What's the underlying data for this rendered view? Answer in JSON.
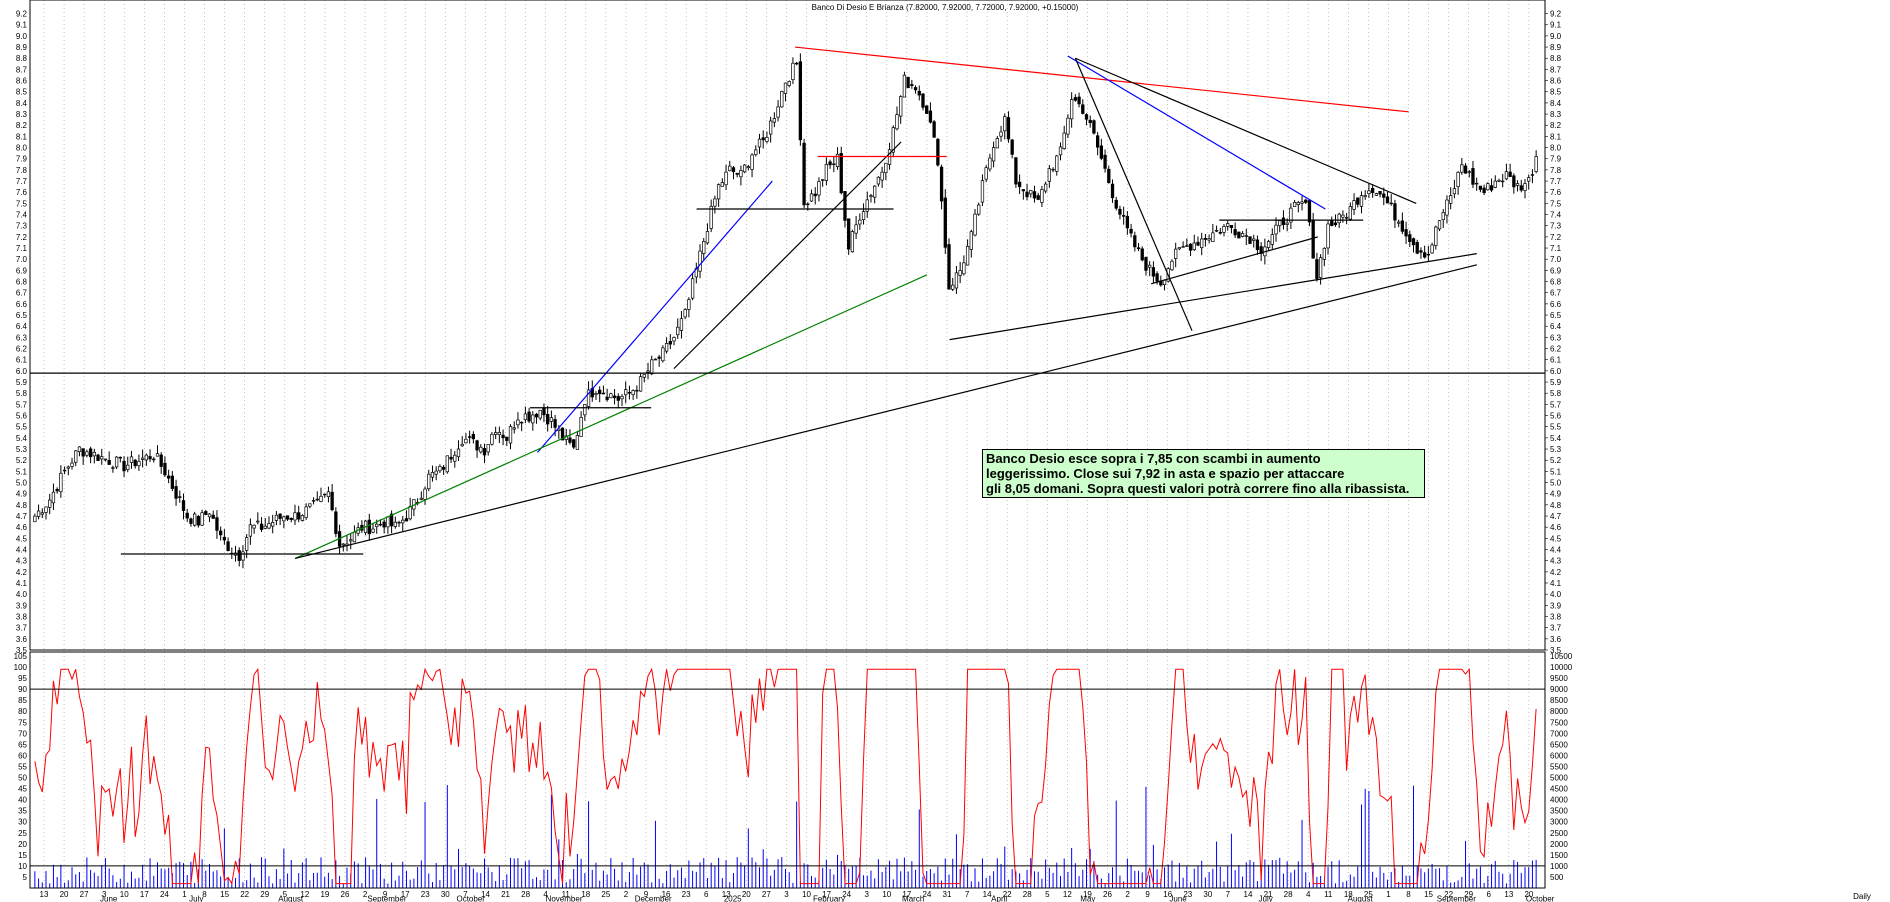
{
  "chart_data": [
    {
      "type": "candlestick",
      "title": "Banco Di Desio E Brianza (7.82000, 7.92000, 7.72000, 7.92000, +0.15000)",
      "ylim": [
        3.5,
        9.25
      ],
      "yticks": [
        3.5,
        3.6,
        3.7,
        3.8,
        3.9,
        4.0,
        4.1,
        4.2,
        4.3,
        4.4,
        4.5,
        4.6,
        4.7,
        4.8,
        4.9,
        5.0,
        5.1,
        5.2,
        5.3,
        5.4,
        5.5,
        5.6,
        5.7,
        5.8,
        5.9,
        6.0,
        6.1,
        6.2,
        6.3,
        6.4,
        6.5,
        6.6,
        6.7,
        6.8,
        6.9,
        7.0,
        7.1,
        7.2,
        7.3,
        7.4,
        7.5,
        7.6,
        7.7,
        7.8,
        7.9,
        8.0,
        8.1,
        8.2,
        8.3,
        8.4,
        8.5,
        8.6,
        8.7,
        8.8,
        8.9,
        9.0,
        9.1,
        9.2
      ],
      "grid": true,
      "close_path": [
        [
          0,
          4.7
        ],
        [
          4,
          4.85
        ],
        [
          8,
          5.1
        ],
        [
          12,
          5.3
        ],
        [
          16,
          5.25
        ],
        [
          20,
          5.2
        ],
        [
          24,
          5.15
        ],
        [
          28,
          5.2
        ],
        [
          32,
          5.25
        ],
        [
          35,
          5.1
        ],
        [
          38,
          4.9
        ],
        [
          41,
          4.7
        ],
        [
          44,
          4.65
        ],
        [
          47,
          4.75
        ],
        [
          50,
          4.5
        ],
        [
          53,
          4.4
        ],
        [
          55,
          4.35
        ],
        [
          58,
          4.6
        ],
        [
          61,
          4.6
        ],
        [
          64,
          4.65
        ],
        [
          67,
          4.7
        ],
        [
          70,
          4.7
        ],
        [
          73,
          4.75
        ],
        [
          76,
          4.8
        ],
        [
          79,
          4.9
        ],
        [
          82,
          4.45
        ],
        [
          85,
          4.5
        ],
        [
          88,
          4.6
        ],
        [
          91,
          4.6
        ],
        [
          94,
          4.65
        ],
        [
          97,
          4.6
        ],
        [
          100,
          4.7
        ],
        [
          103,
          4.85
        ],
        [
          106,
          5.05
        ],
        [
          109,
          5.1
        ],
        [
          112,
          5.25
        ],
        [
          115,
          5.4
        ],
        [
          118,
          5.35
        ],
        [
          121,
          5.3
        ],
        [
          124,
          5.5
        ],
        [
          127,
          5.4
        ],
        [
          130,
          5.6
        ],
        [
          133,
          5.6
        ],
        [
          136,
          5.65
        ],
        [
          139,
          5.55
        ],
        [
          142,
          5.4
        ],
        [
          145,
          5.3
        ],
        [
          148,
          5.75
        ],
        [
          151,
          5.85
        ],
        [
          154,
          5.8
        ],
        [
          157,
          5.75
        ],
        [
          160,
          5.8
        ],
        [
          163,
          5.9
        ],
        [
          166,
          6.05
        ],
        [
          169,
          6.15
        ],
        [
          172,
          6.3
        ],
        [
          175,
          6.5
        ],
        [
          178,
          6.9
        ],
        [
          181,
          7.3
        ],
        [
          184,
          7.65
        ],
        [
          187,
          7.8
        ],
        [
          190,
          7.75
        ],
        [
          193,
          7.95
        ],
        [
          196,
          8.05
        ],
        [
          199,
          8.3
        ],
        [
          202,
          8.6
        ],
        [
          205,
          8.75
        ],
        [
          207,
          7.5
        ],
        [
          210,
          7.6
        ],
        [
          213,
          7.8
        ],
        [
          216,
          7.9
        ],
        [
          219,
          7.1
        ],
        [
          222,
          7.4
        ],
        [
          225,
          7.6
        ],
        [
          228,
          7.8
        ],
        [
          231,
          8.15
        ],
        [
          234,
          8.6
        ],
        [
          237,
          8.55
        ],
        [
          240,
          8.35
        ],
        [
          243,
          7.9
        ],
        [
          246,
          6.75
        ],
        [
          249,
          6.9
        ],
        [
          252,
          7.2
        ],
        [
          255,
          7.65
        ],
        [
          258,
          8.05
        ],
        [
          261,
          8.25
        ],
        [
          264,
          7.7
        ],
        [
          267,
          7.6
        ],
        [
          270,
          7.5
        ],
        [
          273,
          7.8
        ],
        [
          276,
          7.95
        ],
        [
          279,
          8.45
        ],
        [
          282,
          8.35
        ],
        [
          285,
          8.1
        ],
        [
          288,
          7.8
        ],
        [
          291,
          7.5
        ],
        [
          294,
          7.25
        ],
        [
          297,
          7.05
        ],
        [
          300,
          6.9
        ],
        [
          303,
          6.8
        ],
        [
          306,
          7.0
        ],
        [
          309,
          7.1
        ],
        [
          312,
          7.15
        ],
        [
          315,
          7.2
        ],
        [
          318,
          7.25
        ],
        [
          321,
          7.3
        ],
        [
          324,
          7.25
        ],
        [
          327,
          7.2
        ],
        [
          330,
          7.1
        ],
        [
          333,
          7.2
        ],
        [
          336,
          7.35
        ],
        [
          339,
          7.45
        ],
        [
          342,
          7.5
        ],
        [
          345,
          6.85
        ],
        [
          348,
          7.3
        ],
        [
          351,
          7.35
        ],
        [
          354,
          7.45
        ],
        [
          357,
          7.6
        ],
        [
          360,
          7.65
        ],
        [
          363,
          7.55
        ],
        [
          366,
          7.4
        ],
        [
          369,
          7.25
        ],
        [
          372,
          7.1
        ],
        [
          375,
          7.05
        ],
        [
          378,
          7.35
        ],
        [
          381,
          7.55
        ],
        [
          384,
          7.85
        ],
        [
          387,
          7.7
        ],
        [
          390,
          7.6
        ],
        [
          393,
          7.7
        ],
        [
          396,
          7.75
        ],
        [
          399,
          7.65
        ],
        [
          402,
          7.7
        ],
        [
          404,
          7.92
        ]
      ],
      "trendlines": [
        {
          "color": "#ff0000",
          "from": [
            0.505,
            8.9
          ],
          "to": [
            0.91,
            8.32
          ]
        },
        {
          "color": "#0000ff",
          "from": [
            0.335,
            5.27
          ],
          "to": [
            0.49,
            7.7
          ]
        },
        {
          "color": "#0000ff",
          "from": [
            0.685,
            8.82
          ],
          "to": [
            0.855,
            7.45
          ]
        },
        {
          "color": "#008000",
          "from": [
            0.175,
            4.32
          ],
          "to": [
            0.592,
            6.86
          ]
        },
        {
          "color": "#000000",
          "from": [
            0.175,
            4.32
          ],
          "to": [
            0.955,
            6.95
          ]
        },
        {
          "color": "#000000",
          "from": [
            0.425,
            6.02
          ],
          "to": [
            0.575,
            8.05
          ]
        },
        {
          "color": "#000000",
          "from": [
            0.607,
            6.28
          ],
          "to": [
            0.955,
            7.05
          ]
        },
        {
          "color": "#000000",
          "from": [
            0.69,
            8.8
          ],
          "to": [
            0.767,
            6.36
          ]
        },
        {
          "color": "#000000",
          "from": [
            0.69,
            8.8
          ],
          "to": [
            0.915,
            7.5
          ]
        },
        {
          "color": "#000000",
          "from": [
            0.74,
            6.78
          ],
          "to": [
            0.85,
            7.2
          ]
        },
        {
          "color": "#000000",
          "from": [
            0.06,
            4.36
          ],
          "to": [
            0.22,
            4.36
          ]
        },
        {
          "color": "#000000",
          "from": [
            0.33,
            5.67
          ],
          "to": [
            0.41,
            5.67
          ]
        },
        {
          "color": "#000000",
          "from": [
            0.44,
            7.45
          ],
          "to": [
            0.57,
            7.45
          ]
        },
        {
          "color": "#ff0000",
          "from": [
            0.52,
            7.92
          ],
          "to": [
            0.605,
            7.92
          ]
        },
        {
          "color": "#000000",
          "from": [
            0.785,
            7.35
          ],
          "to": [
            0.88,
            7.35
          ]
        },
        {
          "color": "#000000",
          "from": [
            0.0,
            5.98
          ],
          "to": [
            1.0,
            5.98
          ]
        }
      ],
      "annotation": "Banco Desio esce sopra i 7,85 con scambi in aumento\nleggerissimo. Close sui 7,92 in asta e spazio per attaccare\ngli 8,05 domani. Sopra questi valori potrà correre fino alla ribassista."
    },
    {
      "type": "line+bar",
      "ylim_left": [
        0,
        105
      ],
      "yticks_left": [
        5,
        10,
        15,
        20,
        25,
        30,
        35,
        40,
        45,
        50,
        55,
        60,
        65,
        70,
        75,
        80,
        85,
        90,
        95,
        100,
        105
      ],
      "ylim_right": [
        0,
        10500
      ],
      "yticks_right": [
        500,
        1000,
        1500,
        2000,
        2500,
        3000,
        3500,
        4000,
        4500,
        5000,
        5500,
        6000,
        6500,
        7000,
        7500,
        8000,
        8500,
        9000,
        9500,
        10000,
        10500
      ],
      "levels": [
        90,
        10
      ],
      "oscillator_color": "#ff0000",
      "volume_color": "#0000ff"
    }
  ],
  "x_axis": {
    "days": [
      "13",
      "20",
      "27",
      "3",
      "10",
      "17",
      "24",
      "1",
      "8",
      "15",
      "22",
      "29",
      "5",
      "12",
      "19",
      "26",
      "2",
      "9",
      "17",
      "23",
      "30",
      "7",
      "14",
      "21",
      "28",
      "4",
      "11",
      "18",
      "25",
      "2",
      "9",
      "16",
      "23",
      "6",
      "13",
      "20",
      "27",
      "3",
      "10",
      "17",
      "24",
      "3",
      "10",
      "17",
      "24",
      "31",
      "7",
      "14",
      "22",
      "28",
      "5",
      "12",
      "19",
      "26",
      "2",
      "9",
      "16",
      "23",
      "30",
      "7",
      "14",
      "21",
      "28",
      "4",
      "11",
      "18",
      "25",
      "1",
      "8",
      "15",
      "22",
      "29",
      "6",
      "13",
      "20"
    ],
    "months": [
      "June",
      "July",
      "August",
      "September",
      "October",
      "November",
      "December",
      "2025",
      "February",
      "March",
      "April",
      "May",
      "June",
      "July",
      "August",
      "September",
      "October"
    ],
    "corner_label": "Daily"
  }
}
